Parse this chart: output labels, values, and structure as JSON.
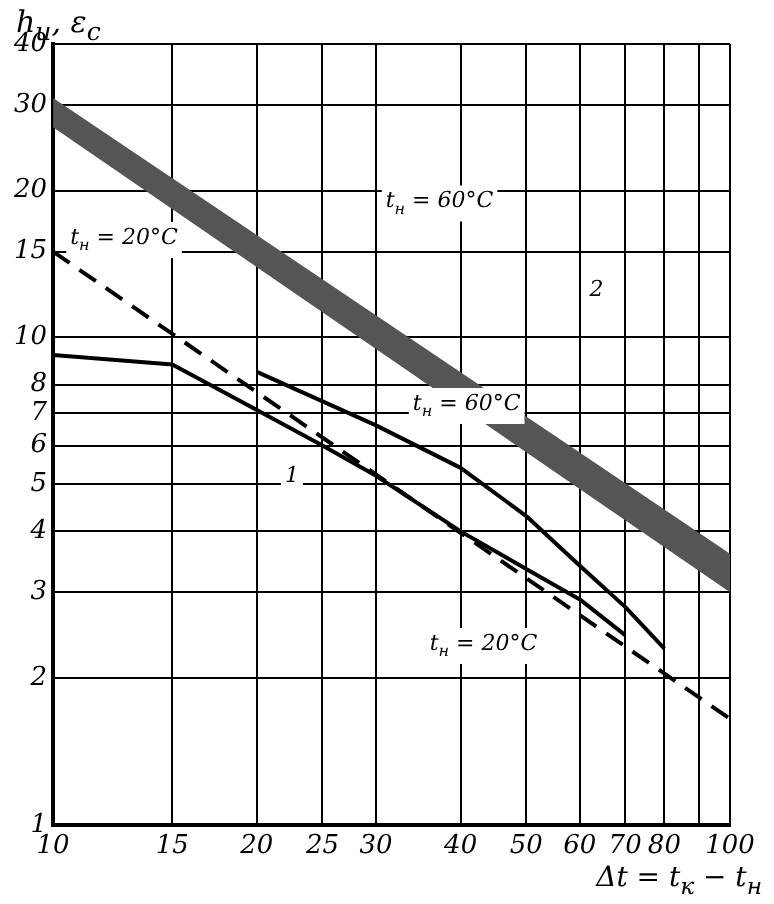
{
  "chart_data": {
    "type": "line",
    "ylabel": "h$_{и}$, ε$_{с}$",
    "xlabel": "Δt = t$_{к}$ − t$_{н}$",
    "log": "xy",
    "grid": true,
    "marker": "none",
    "xlim": [
      10,
      100
    ],
    "ylim": [
      1,
      40
    ],
    "xticks": [
      10,
      15,
      20,
      25,
      30,
      40,
      50,
      60,
      70,
      80,
      {
        "value": 90,
        "label": null
      },
      100
    ],
    "yticks": [
      1,
      2,
      3,
      4,
      5,
      6,
      7,
      8,
      10,
      15,
      20,
      30,
      40
    ],
    "series": [
      {
        "color": "#555555",
        "x": [
          10,
          100
        ],
        "values": [
          null,
          null
        ],
        "lower": [
          27,
          3.0
        ],
        "upper": [
          31,
          3.6
        ]
      },
      {
        "color": "#000000",
        "x": [
          10,
          100
        ],
        "values": [
          15,
          1.65
        ],
        "line_style": "dashed"
      },
      {
        "color": "#000000",
        "x": [
          10,
          15,
          20,
          25,
          30,
          40,
          50,
          60,
          70
        ],
        "values": [
          9.2,
          8.8,
          7.1,
          6.0,
          5.2,
          4.0,
          3.35,
          2.9,
          2.45
        ],
        "line_style": "solid"
      },
      {
        "color": "#000000",
        "x": [
          20,
          30,
          40,
          50,
          60,
          70,
          80
        ],
        "values": [
          8.5,
          6.6,
          5.4,
          4.3,
          3.4,
          2.8,
          2.3
        ],
        "line_style": "solid"
      }
    ],
    "annotations": [
      "t$_{н}$ = 20°C",
      "t$_{н}$ = 60°C",
      "2",
      "1",
      "t$_{н}$ = 60°C",
      "t$_{н}$ = 20°C"
    ]
  }
}
